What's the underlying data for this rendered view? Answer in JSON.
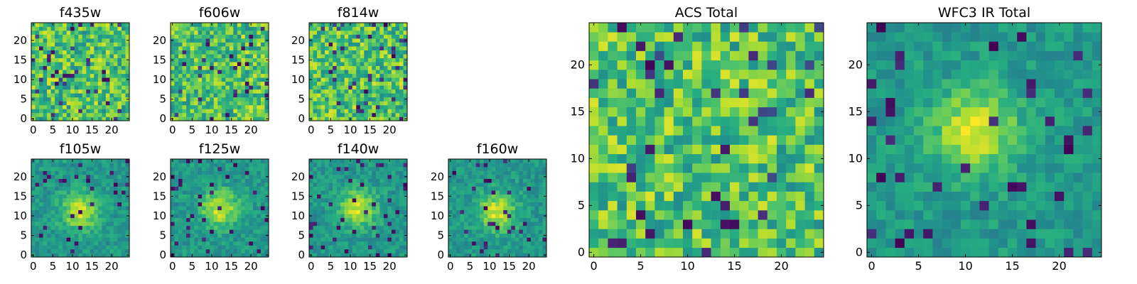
{
  "figure": {
    "colormap": "viridis",
    "background": "#ffffff"
  },
  "chart_data": [
    {
      "type": "heatmap",
      "title": "f435w",
      "grid": false,
      "xlim": [
        0,
        24
      ],
      "ylim": [
        0,
        24
      ],
      "xticks": [
        0,
        5,
        10,
        15,
        20
      ],
      "yticks": [
        0,
        5,
        10,
        15,
        20
      ],
      "pattern": "noise",
      "seed": 11
    },
    {
      "type": "heatmap",
      "title": "f606w",
      "grid": false,
      "xlim": [
        0,
        24
      ],
      "ylim": [
        0,
        24
      ],
      "xticks": [
        0,
        5,
        10,
        15,
        20
      ],
      "yticks": [
        0,
        5,
        10,
        15,
        20
      ],
      "pattern": "noise",
      "seed": 23
    },
    {
      "type": "heatmap",
      "title": "f814w",
      "grid": false,
      "xlim": [
        0,
        24
      ],
      "ylim": [
        0,
        24
      ],
      "xticks": [
        0,
        5,
        10,
        15,
        20
      ],
      "yticks": [
        0,
        5,
        10,
        15,
        20
      ],
      "pattern": "noise",
      "seed": 37
    },
    {
      "type": "heatmap",
      "title": "f105w",
      "grid": false,
      "xlim": [
        0,
        24
      ],
      "ylim": [
        0,
        24
      ],
      "xticks": [
        0,
        5,
        10,
        15,
        20
      ],
      "yticks": [
        0,
        5,
        10,
        15,
        20
      ],
      "pattern": "source",
      "source_center": [
        12,
        11
      ],
      "seed": 41
    },
    {
      "type": "heatmap",
      "title": "f125w",
      "grid": false,
      "xlim": [
        0,
        24
      ],
      "ylim": [
        0,
        24
      ],
      "xticks": [
        0,
        5,
        10,
        15,
        20
      ],
      "yticks": [
        0,
        5,
        10,
        15,
        20
      ],
      "pattern": "source",
      "source_center": [
        12,
        12
      ],
      "seed": 53
    },
    {
      "type": "heatmap",
      "title": "f140w",
      "grid": false,
      "xlim": [
        0,
        24
      ],
      "ylim": [
        0,
        24
      ],
      "xticks": [
        0,
        5,
        10,
        15,
        20
      ],
      "yticks": [
        0,
        5,
        10,
        15,
        20
      ],
      "pattern": "source",
      "source_center": [
        12,
        12
      ],
      "seed": 67
    },
    {
      "type": "heatmap",
      "title": "f160w",
      "grid": false,
      "xlim": [
        0,
        24
      ],
      "ylim": [
        0,
        24
      ],
      "xticks": [
        0,
        5,
        10,
        15,
        20
      ],
      "yticks": [
        0,
        5,
        10,
        15,
        20
      ],
      "pattern": "source",
      "source_center": [
        12,
        11
      ],
      "seed": 79
    },
    {
      "type": "heatmap",
      "title": "ACS Total",
      "grid": false,
      "xlim": [
        0,
        24
      ],
      "ylim": [
        0,
        24
      ],
      "xticks": [
        0,
        5,
        10,
        15,
        20
      ],
      "yticks": [
        0,
        5,
        10,
        15,
        20
      ],
      "pattern": "noise",
      "seed": 97
    },
    {
      "type": "heatmap",
      "title": "WFC3 IR Total",
      "grid": false,
      "xlim": [
        0,
        24
      ],
      "ylim": [
        0,
        24
      ],
      "xticks": [
        0,
        5,
        10,
        15,
        20
      ],
      "yticks": [
        0,
        5,
        10,
        15,
        20
      ],
      "pattern": "source",
      "source_center": [
        11,
        13
      ],
      "seed": 131
    }
  ]
}
